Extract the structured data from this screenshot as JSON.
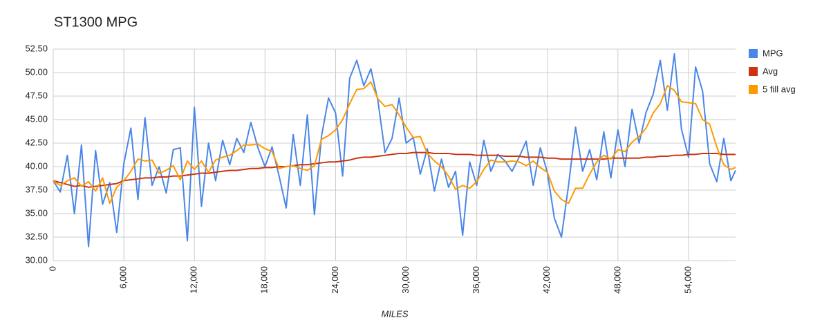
{
  "chart_data": {
    "type": "line",
    "title": "ST1300 MPG",
    "x_label": "MILES",
    "x": [
      0,
      600,
      1200,
      1800,
      2400,
      3000,
      3600,
      4200,
      4800,
      5400,
      6000,
      6600,
      7200,
      7800,
      8400,
      9000,
      9600,
      10200,
      10800,
      11400,
      12000,
      12600,
      13200,
      13800,
      14400,
      15000,
      15600,
      16200,
      16800,
      17400,
      18000,
      18600,
      19200,
      19800,
      20400,
      21000,
      21600,
      22200,
      22800,
      23400,
      24000,
      24600,
      25200,
      25800,
      26400,
      27000,
      27600,
      28200,
      28800,
      29400,
      30000,
      30600,
      31200,
      31800,
      32400,
      33000,
      33600,
      34200,
      34800,
      35400,
      36000,
      36600,
      37200,
      37800,
      38400,
      39000,
      39600,
      40200,
      40800,
      41400,
      42000,
      42600,
      43200,
      43800,
      44400,
      45000,
      45600,
      46200,
      46800,
      47400,
      48000,
      48600,
      49200,
      49800,
      50400,
      51000,
      51600,
      52200,
      52800,
      53400,
      54000,
      54600,
      55200,
      55800,
      56400,
      57000,
      57600,
      58000
    ],
    "series": [
      {
        "name": "MPG",
        "color": "#4a86e8",
        "values": [
          38.5,
          37.3,
          41.2,
          35,
          42.3,
          31.5,
          41.7,
          36,
          38.3,
          33,
          40.3,
          44.1,
          36.5,
          45.2,
          38,
          40,
          37.2,
          41.8,
          42,
          32.1,
          46.3,
          35.8,
          42.5,
          38.5,
          42.8,
          40.2,
          43,
          41.5,
          44.7,
          42,
          40,
          42.1,
          39,
          35.6,
          43.4,
          38,
          45.5,
          34.9,
          43.2,
          47.3,
          45.7,
          39,
          49.4,
          51.3,
          48.6,
          50.4,
          47,
          41.5,
          43,
          47.3,
          42.5,
          43.1,
          39.2,
          41.9,
          37.4,
          40.8,
          37.8,
          39.5,
          32.7,
          40.5,
          38,
          42.8,
          39.5,
          41.3,
          40.6,
          39.5,
          41,
          42.7,
          38,
          42,
          39.4,
          34.5,
          32.5,
          38,
          44.2,
          39.5,
          41.8,
          38.6,
          43.7,
          38.8,
          43.9,
          40,
          46.1,
          42.5,
          45.8,
          47.7,
          51.3,
          46,
          52,
          44,
          41,
          50.6,
          48,
          40.3,
          38.4,
          43,
          38.5,
          39.6
        ]
      },
      {
        "name": "Avg",
        "color": "#cc3311",
        "values": [
          38.5,
          38.3,
          38.1,
          37.9,
          38,
          37.8,
          37.9,
          38,
          38.1,
          38.2,
          38.5,
          38.6,
          38.7,
          38.8,
          38.8,
          38.9,
          38.9,
          39,
          39,
          39.1,
          39.2,
          39.3,
          39.3,
          39.4,
          39.5,
          39.6,
          39.6,
          39.7,
          39.8,
          39.8,
          39.9,
          39.9,
          40,
          40,
          40.1,
          40.2,
          40.2,
          40.3,
          40.4,
          40.5,
          40.5,
          40.6,
          40.7,
          40.9,
          41,
          41,
          41.1,
          41.2,
          41.3,
          41.4,
          41.4,
          41.5,
          41.5,
          41.5,
          41.4,
          41.4,
          41.4,
          41.3,
          41.3,
          41.3,
          41.2,
          41.2,
          41.2,
          41.2,
          41.1,
          41.1,
          41.1,
          41,
          41,
          41,
          40.9,
          40.9,
          40.8,
          40.8,
          40.8,
          40.8,
          40.8,
          40.8,
          40.8,
          40.9,
          40.9,
          40.9,
          40.9,
          40.9,
          41,
          41,
          41.1,
          41.1,
          41.2,
          41.2,
          41.3,
          41.3,
          41.4,
          41.4,
          41.4,
          41.3,
          41.3,
          41.3
        ]
      },
      {
        "name": "5 fill avg",
        "color": "#ff9900",
        "values": [
          38.5,
          38,
          38.5,
          38.8,
          37.9,
          38.4,
          37.4,
          38.8,
          36.1,
          37.8,
          38.5,
          39.5,
          40.8,
          40.6,
          40.7,
          39.3,
          39.6,
          40.1,
          38.6,
          40.6,
          39.7,
          40.6,
          39.4,
          40.7,
          41,
          41.2,
          41.7,
          42.3,
          42.3,
          42.4,
          41.9,
          41.6,
          39.8,
          40,
          40.1,
          39.8,
          39.6,
          40.1,
          42.9,
          43.3,
          43.9,
          45,
          46.7,
          48.2,
          48.3,
          49,
          47.2,
          46.4,
          46.6,
          45.5,
          44.2,
          43.1,
          43.2,
          41.4,
          40.6,
          40,
          39,
          37.6,
          38,
          37.7,
          38.4,
          39.7,
          40.7,
          40.5,
          40.5,
          40.6,
          40.5,
          40.1,
          40.6,
          39.9,
          39.4,
          37.4,
          36.5,
          36.1,
          37.7,
          37.7,
          39.2,
          40.5,
          41.2,
          40.8,
          41.8,
          41.6,
          42.6,
          43.2,
          44.1,
          45.7,
          46.7,
          48.6,
          48.1,
          46.9,
          46.8,
          46.7,
          45,
          44.5,
          42.1,
          40.2,
          39.7,
          39.9
        ]
      }
    ],
    "xlim": [
      0,
      58000
    ],
    "xticks": [
      0,
      {
        "value": 6000,
        "label": "6,000"
      },
      {
        "value": 12000,
        "label": "12,000"
      },
      {
        "value": 18000,
        "label": "18,000"
      },
      {
        "value": 24000,
        "label": "24,000"
      },
      {
        "value": 30000,
        "label": "30,000"
      },
      {
        "value": 36000,
        "label": "36,000"
      },
      {
        "value": 42000,
        "label": "42,000"
      },
      {
        "value": 48000,
        "label": "48,000"
      },
      {
        "value": 54000,
        "label": "54,000"
      }
    ],
    "ylim": [
      30,
      52.5
    ],
    "yticks": [
      {
        "value": 30,
        "label": "30.00"
      },
      {
        "value": 32.5,
        "label": "32.50"
      },
      {
        "value": 35,
        "label": "35.00"
      },
      {
        "value": 37.5,
        "label": "37.50"
      },
      {
        "value": 40,
        "label": "40.00"
      },
      {
        "value": 42.5,
        "label": "42.50"
      },
      {
        "value": 45,
        "label": "45.00"
      },
      {
        "value": 47.5,
        "label": "47.50"
      },
      {
        "value": 50,
        "label": "50.00"
      },
      {
        "value": 52.5,
        "label": "52.50"
      }
    ],
    "grid": true,
    "legend": "right"
  }
}
